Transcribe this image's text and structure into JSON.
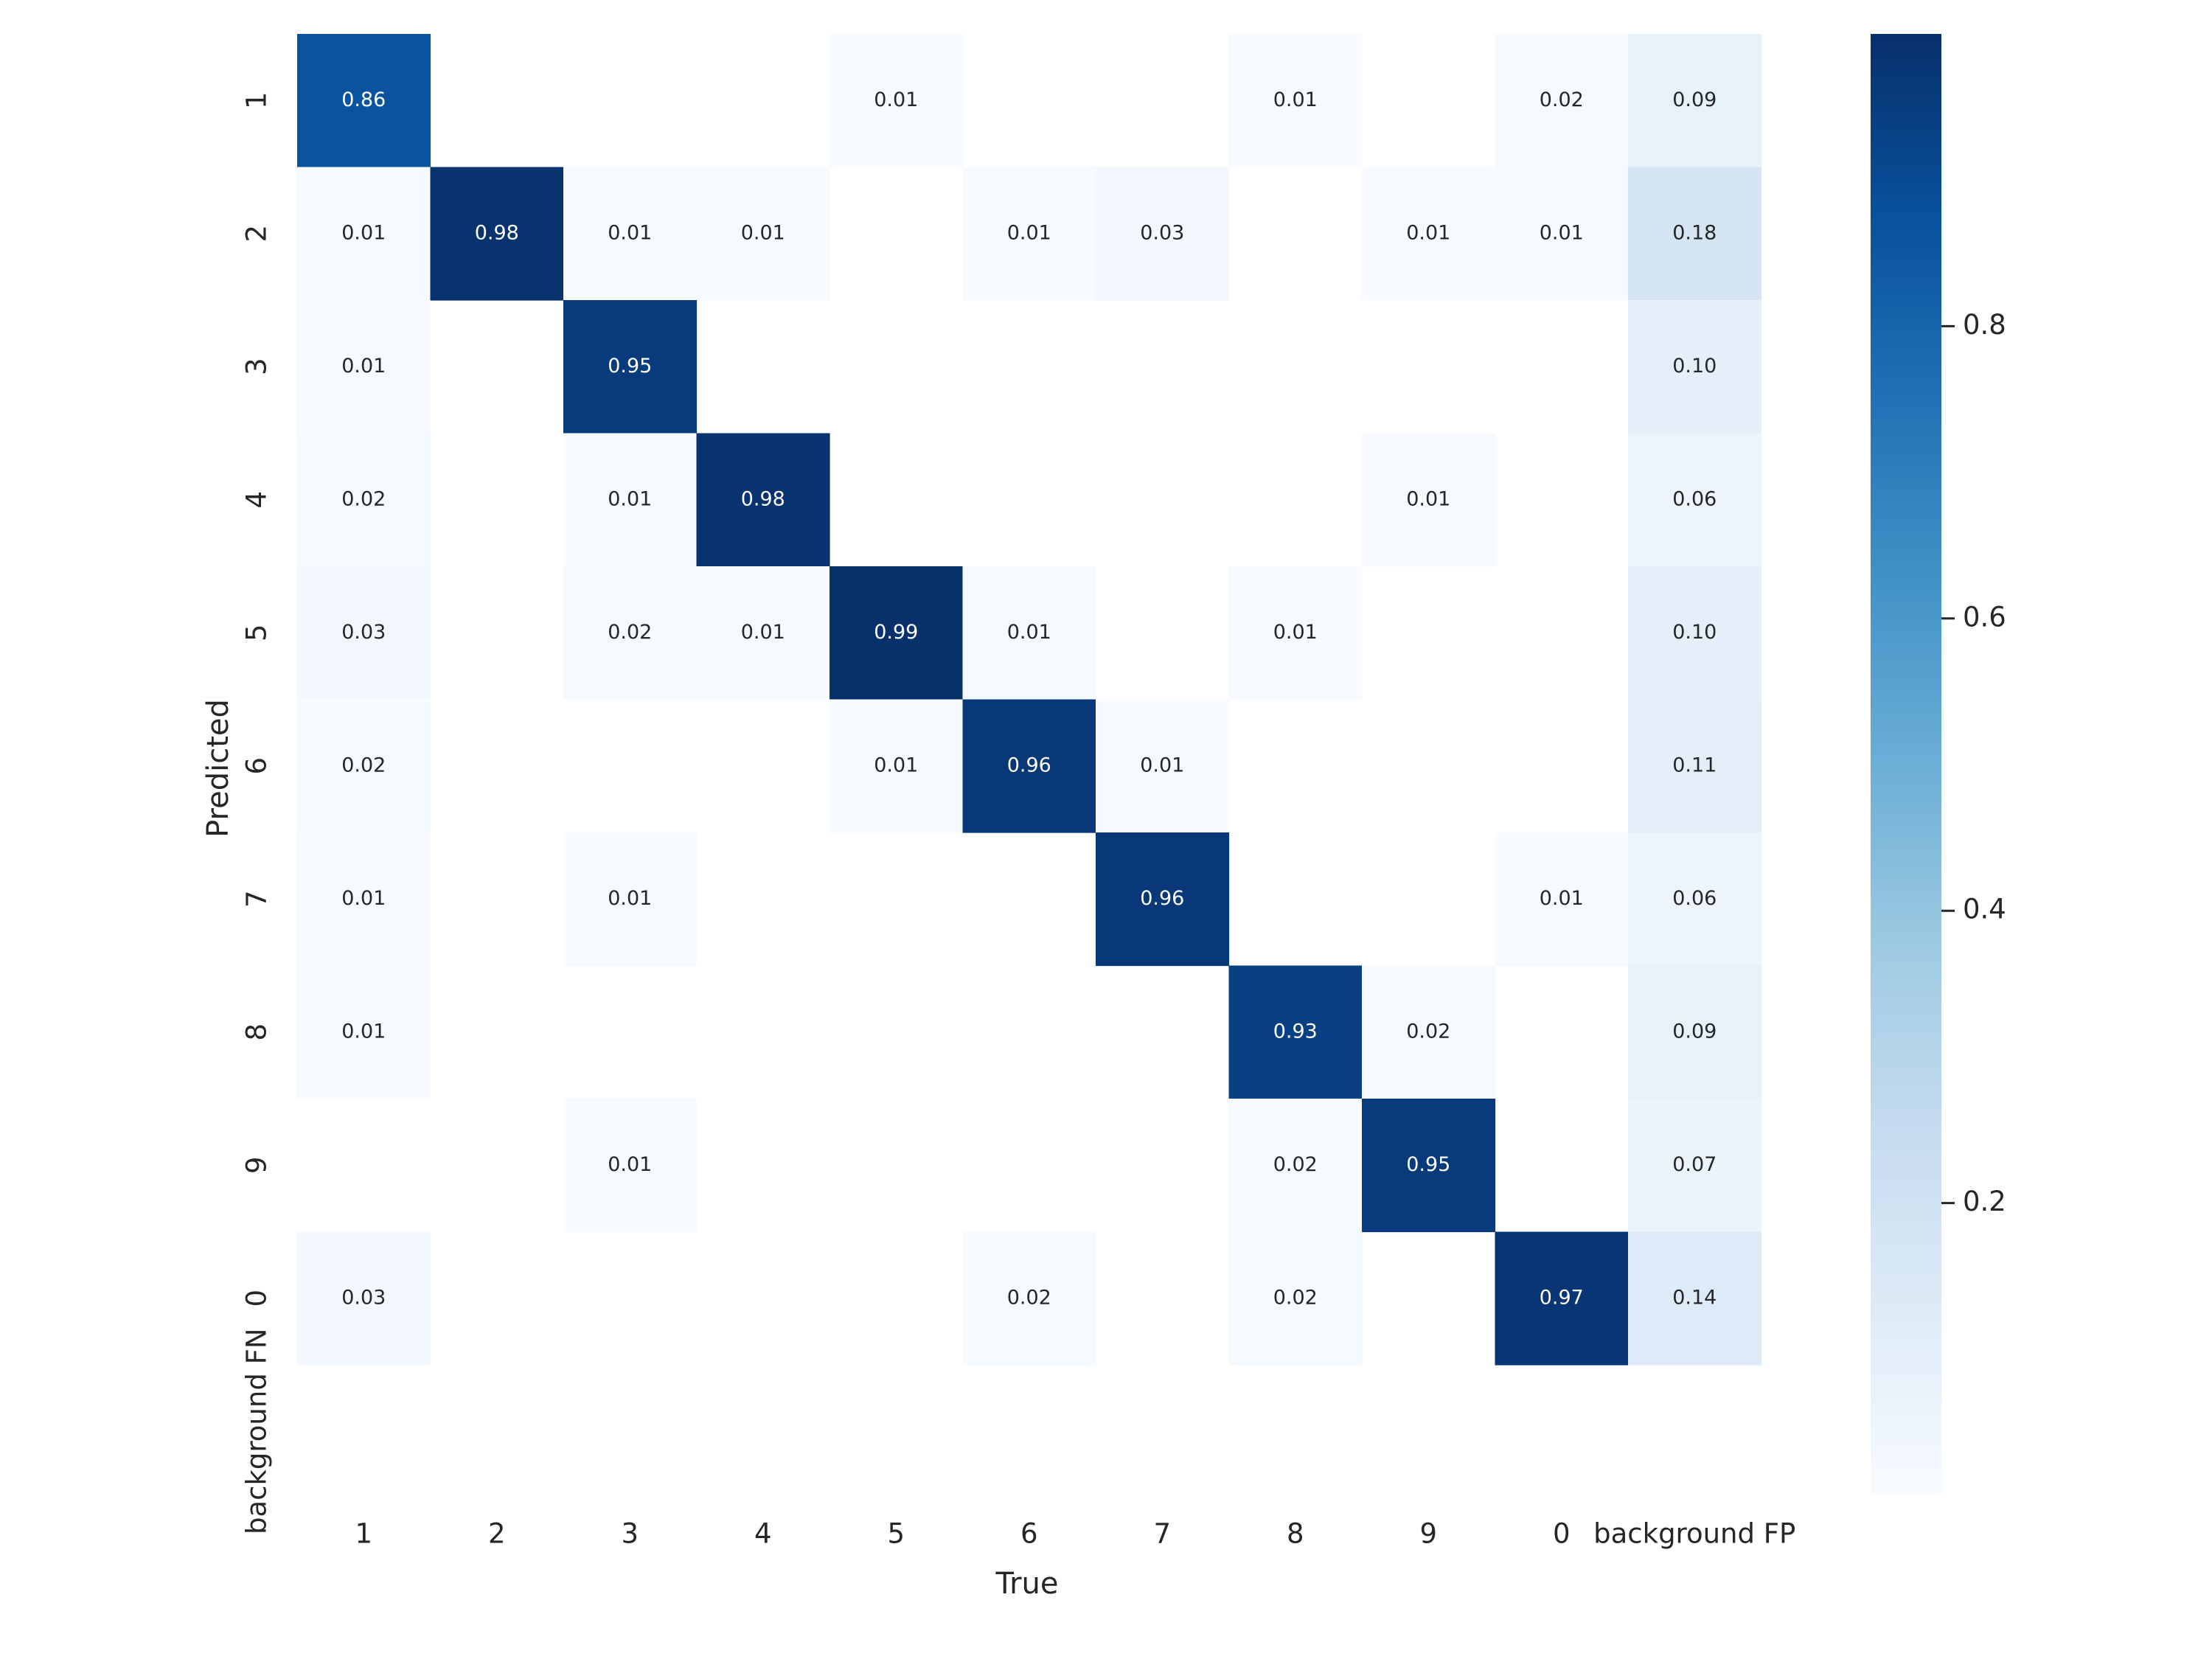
{
  "chart_data": {
    "type": "heatmap",
    "x_categories": [
      "1",
      "2",
      "3",
      "4",
      "5",
      "6",
      "7",
      "8",
      "9",
      "0",
      "background FP"
    ],
    "y_categories": [
      "1",
      "2",
      "3",
      "4",
      "5",
      "6",
      "7",
      "8",
      "9",
      "0",
      "background FN"
    ],
    "xlabel": "True",
    "ylabel": "Predicted",
    "values": [
      [
        0.86,
        null,
        null,
        null,
        0.01,
        null,
        null,
        0.01,
        null,
        0.02,
        0.09
      ],
      [
        0.01,
        0.98,
        0.01,
        0.01,
        null,
        0.01,
        0.03,
        null,
        0.01,
        0.01,
        0.18
      ],
      [
        0.01,
        null,
        0.95,
        null,
        null,
        null,
        null,
        null,
        null,
        null,
        0.1
      ],
      [
        0.02,
        null,
        0.01,
        0.98,
        null,
        null,
        null,
        null,
        0.01,
        null,
        0.06
      ],
      [
        0.03,
        null,
        0.02,
        0.01,
        0.99,
        0.01,
        null,
        0.01,
        null,
        null,
        0.1
      ],
      [
        0.02,
        null,
        null,
        null,
        0.01,
        0.96,
        0.01,
        null,
        null,
        null,
        0.11
      ],
      [
        0.01,
        null,
        0.01,
        null,
        null,
        null,
        0.96,
        null,
        null,
        0.01,
        0.06
      ],
      [
        0.01,
        null,
        null,
        null,
        null,
        null,
        null,
        0.93,
        0.02,
        null,
        0.09
      ],
      [
        null,
        null,
        0.01,
        null,
        null,
        null,
        null,
        0.02,
        0.95,
        null,
        0.07
      ],
      [
        0.03,
        null,
        null,
        null,
        null,
        0.02,
        null,
        0.02,
        null,
        0.97,
        0.14
      ],
      [
        null,
        null,
        null,
        null,
        null,
        null,
        null,
        null,
        null,
        null,
        null
      ]
    ],
    "colormap": "Blues",
    "colorbar": {
      "ticks": [
        0.2,
        0.4,
        0.6,
        0.8
      ],
      "tick_labels": [
        "0.2",
        "0.4",
        "0.6",
        "0.8"
      ],
      "range": [
        0.0,
        1.0
      ]
    },
    "grid": false
  }
}
